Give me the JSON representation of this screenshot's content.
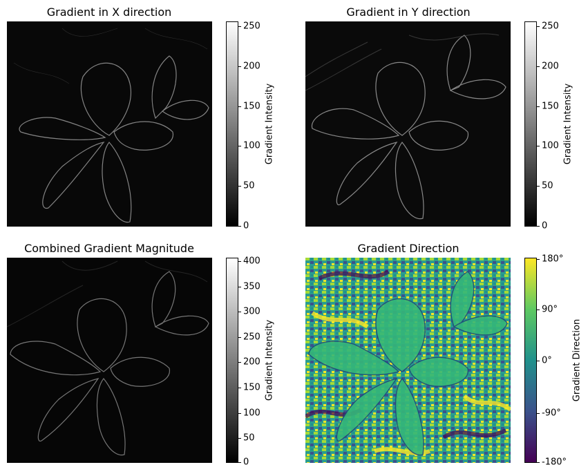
{
  "panels": [
    {
      "title": "Gradient in X direction",
      "cmap": "gray",
      "cbar_label": "Gradient Intensity",
      "cbar_ticks": [
        "0",
        "50",
        "100",
        "150",
        "200",
        "250"
      ],
      "cbar_range": [
        0,
        255
      ]
    },
    {
      "title": "Gradient in Y direction",
      "cmap": "gray",
      "cbar_label": "Gradient Intensity",
      "cbar_ticks": [
        "0",
        "50",
        "100",
        "150",
        "200",
        "250"
      ],
      "cbar_range": [
        0,
        255
      ]
    },
    {
      "title": "Combined Gradient Magnitude",
      "cmap": "gray",
      "cbar_label": "Gradient Intensity",
      "cbar_ticks": [
        "0",
        "50",
        "100",
        "150",
        "200",
        "250",
        "300",
        "350",
        "400"
      ],
      "cbar_range": [
        0,
        405
      ]
    },
    {
      "title": "Gradient Direction",
      "cmap": "viridis",
      "cbar_label": "Gradient Direction",
      "cbar_ticks": [
        "-180°",
        "-90°",
        "0°",
        "90°",
        "180°"
      ],
      "cbar_range": [
        -180,
        180
      ]
    }
  ],
  "chart_data": [
    {
      "type": "heatmap",
      "title": "Gradient in X direction",
      "colorbar_label": "Gradient Intensity",
      "colorbar_range": [
        0,
        255
      ],
      "colormap": "gray"
    },
    {
      "type": "heatmap",
      "title": "Gradient in Y direction",
      "colorbar_label": "Gradient Intensity",
      "colorbar_range": [
        0,
        255
      ],
      "colormap": "gray"
    },
    {
      "type": "heatmap",
      "title": "Combined Gradient Magnitude",
      "colorbar_label": "Gradient Intensity",
      "colorbar_range": [
        0,
        405
      ],
      "colormap": "gray"
    },
    {
      "type": "heatmap",
      "title": "Gradient Direction",
      "colorbar_label": "Gradient Direction",
      "colorbar_range": [
        -180,
        180
      ],
      "colormap": "viridis"
    }
  ]
}
